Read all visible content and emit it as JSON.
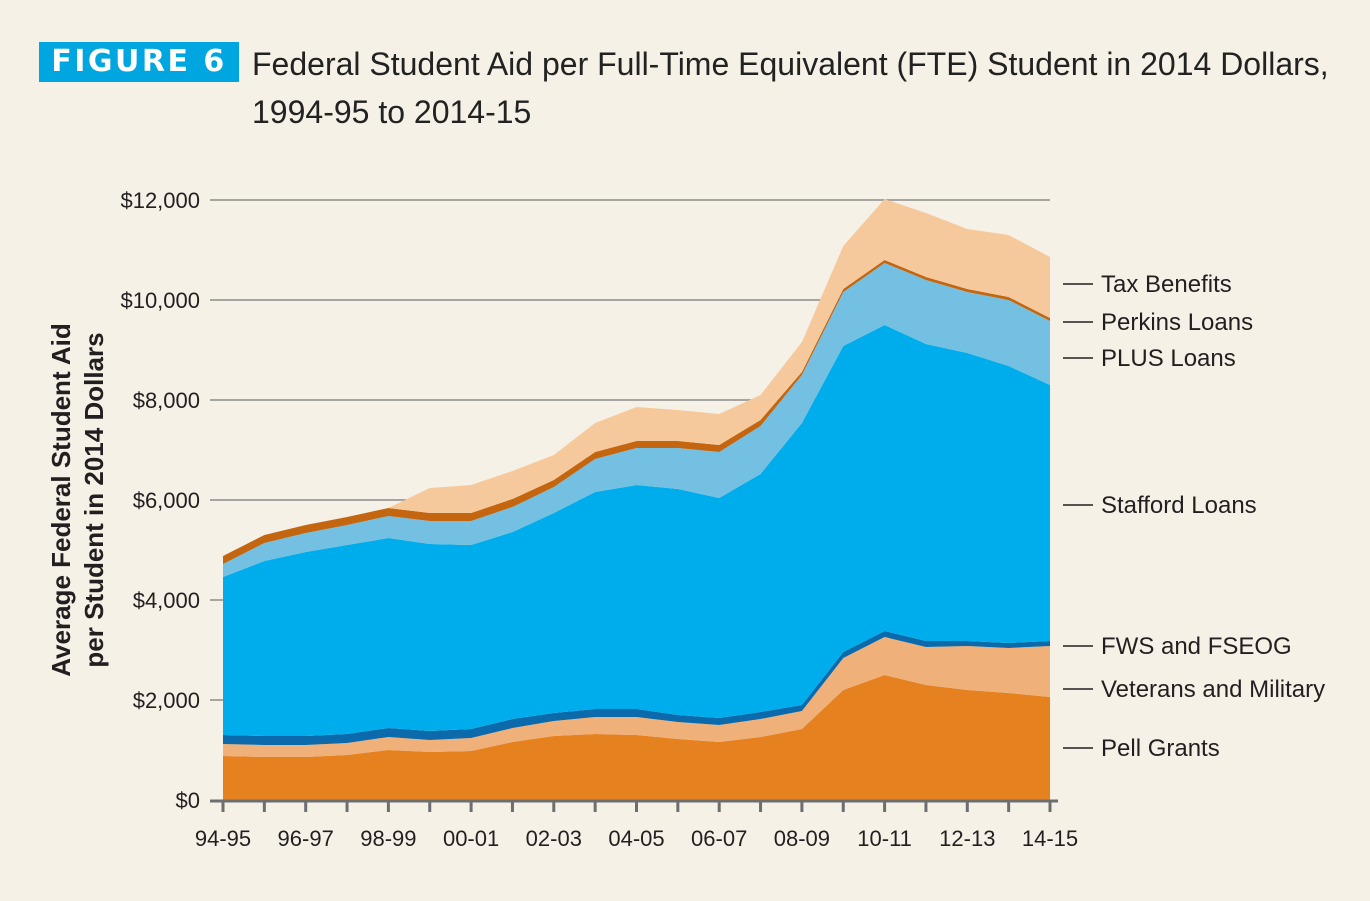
{
  "figure": {
    "badge": "FIGURE 6",
    "title": "Federal Student Aid per Full-Time Equivalent (FTE) Student in 2014 Dollars, 1994-95 to 2014-15",
    "badge_color": "#00a6e0"
  },
  "chart_data": {
    "type": "area",
    "stacked": true,
    "title": "Federal Student Aid per Full-Time Equivalent (FTE) Student in 2014 Dollars, 1994-95 to 2014-15",
    "xlabel": "",
    "ylabel_lines": [
      "Average Federal Student Aid",
      "per Student in 2014 Dollars"
    ],
    "ylim": [
      0,
      12000
    ],
    "yticks": [
      0,
      2000,
      4000,
      6000,
      8000,
      10000,
      12000
    ],
    "ytick_labels": [
      "$0",
      "$2,000",
      "$4,000",
      "$6,000",
      "$8,000",
      "$10,000",
      "$12,000"
    ],
    "grid": true,
    "legend": "right (inline labels)",
    "x": [
      "94-95",
      "95-96",
      "96-97",
      "97-98",
      "98-99",
      "99-00",
      "00-01",
      "01-02",
      "02-03",
      "03-04",
      "04-05",
      "05-06",
      "06-07",
      "07-08",
      "08-09",
      "09-10",
      "10-11",
      "11-12",
      "12-13",
      "13-14",
      "14-15"
    ],
    "xtick_labels": [
      "94-95",
      "96-97",
      "98-99",
      "00-01",
      "02-03",
      "04-05",
      "06-07",
      "08-09",
      "10-11",
      "12-13",
      "14-15"
    ],
    "series": [
      {
        "name": "Pell Grants",
        "color": "#e5811f",
        "values": [
          880,
          860,
          860,
          900,
          1000,
          960,
          980,
          1160,
          1280,
          1320,
          1300,
          1220,
          1160,
          1260,
          1420,
          2200,
          2500,
          2300,
          2200,
          2140,
          2060
        ]
      },
      {
        "name": "Veterans and Military",
        "color": "#f0b07a",
        "values": [
          240,
          240,
          240,
          240,
          260,
          240,
          260,
          280,
          300,
          340,
          360,
          340,
          340,
          360,
          360,
          640,
          760,
          760,
          880,
          900,
          1020
        ]
      },
      {
        "name": "FWS and FSEOG",
        "color": "#0a6aac",
        "values": [
          180,
          180,
          180,
          180,
          180,
          180,
          180,
          180,
          160,
          160,
          160,
          140,
          140,
          140,
          120,
          120,
          120,
          120,
          100,
          100,
          100
        ]
      },
      {
        "name": "Stafford Loans",
        "color": "#00adec",
        "values": [
          3160,
          3500,
          3680,
          3780,
          3800,
          3740,
          3680,
          3740,
          4000,
          4340,
          4480,
          4520,
          4400,
          4760,
          5640,
          6120,
          6120,
          5940,
          5760,
          5540,
          5120
        ]
      },
      {
        "name": "PLUS Loans",
        "color": "#74c0e2",
        "values": [
          260,
          360,
          380,
          400,
          440,
          460,
          480,
          500,
          520,
          660,
          740,
          820,
          920,
          960,
          960,
          1080,
          1240,
          1280,
          1220,
          1320,
          1280
        ]
      },
      {
        "name": "Perkins Loans",
        "color": "#c4650f",
        "values": [
          160,
          160,
          160,
          160,
          160,
          160,
          160,
          160,
          140,
          140,
          140,
          140,
          140,
          120,
          60,
          60,
          60,
          60,
          60,
          60,
          60
        ]
      },
      {
        "name": "Tax Benefits",
        "color": "#f6c99c",
        "values": [
          0,
          0,
          0,
          0,
          0,
          500,
          560,
          560,
          500,
          580,
          680,
          620,
          620,
          500,
          600,
          860,
          1220,
          1280,
          1200,
          1240,
          1220
        ]
      }
    ]
  }
}
